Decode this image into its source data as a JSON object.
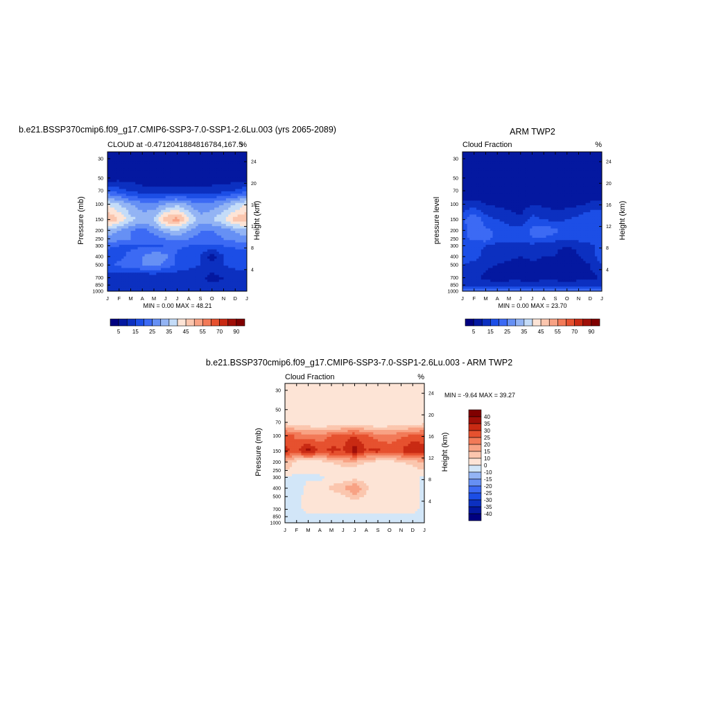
{
  "colors": {
    "plot_palette": [
      "#000080",
      "#0418a0",
      "#0c30c0",
      "#1c4ee6",
      "#3c6af4",
      "#6690f4",
      "#93b4f4",
      "#c4dcf8",
      "#fde4d6",
      "#fbc6ae",
      "#f8a284",
      "#f27a58",
      "#e6512f",
      "#c92a13",
      "#a00f08",
      "#800000"
    ],
    "diff_palette": [
      "#000080",
      "#0418a0",
      "#0c30c0",
      "#1c4ee6",
      "#3c6af4",
      "#6690f4",
      "#93b4f4",
      "#d2e6f8",
      "#fde4d6",
      "#fbc6ae",
      "#f8a284",
      "#f27a58",
      "#e6512f",
      "#c92a13",
      "#a00f08",
      "#800000"
    ]
  },
  "panels": [
    {
      "title": "b.e21.BSSP370cmip6.f09_g17.CMIP6-SSP3-7.0-SSP1-2.6Lu.003 (yrs 2065-2089)",
      "left_string": "CLOUD at -0.4712041884816784,167.5",
      "right_string": "%",
      "ylabel": "Pressure (mb)",
      "ylabel_right": "Height (km)",
      "minmax": "MIN =   0.00 MAX =  48.21"
    },
    {
      "title": "ARM TWP2",
      "left_string": "Cloud Fraction",
      "right_string": "%",
      "ylabel": "pressure level",
      "ylabel_right": "Height (km)",
      "minmax": "MIN =   0.00 MAX =  23.70"
    },
    {
      "title": "b.e21.BSSP370cmip6.f09_g17.CMIP6-SSP3-7.0-SSP1-2.6Lu.003 - ARM TWP2",
      "left_string": "Cloud Fraction",
      "right_string": "%",
      "ylabel": "Pressure (mb)",
      "ylabel_right": "Height (km)",
      "minmax": "MIN =  -9.64 MAX =  39.27"
    }
  ],
  "colorbar_labels": [
    "5",
    "15",
    "25",
    "35",
    "45",
    "55",
    "70",
    "90"
  ],
  "diff_colorbar_labels": [
    "40",
    "35",
    "30",
    "25",
    "20",
    "15",
    "10",
    "0",
    "-10",
    "-15",
    "-20",
    "-25",
    "-30",
    "-35",
    "-40"
  ],
  "chart_data": [
    {
      "type": "heatmap",
      "title": "b.e21.BSSP370cmip6.f09_g17.CMIP6-SSP3-7.0-SSP1-2.6Lu.003 (yrs 2065-2089)",
      "x": [
        "J",
        "F",
        "M",
        "A",
        "M",
        "J",
        "J",
        "A",
        "S",
        "O",
        "N",
        "D",
        "J"
      ],
      "y": [
        30,
        50,
        70,
        100,
        150,
        200,
        250,
        300,
        400,
        500,
        700,
        850,
        1000
      ],
      "y_right": [
        24,
        20,
        16,
        12,
        8,
        4
      ],
      "xlabel": "",
      "ylabel": "Pressure (mb)",
      "ylabel_right": "Height (km)",
      "ylim": [
        30,
        1000
      ],
      "y_scale": "log",
      "y_reversed": true,
      "levels": [
        0,
        5,
        10,
        15,
        20,
        25,
        30,
        35,
        40,
        45,
        50,
        55,
        60,
        70,
        80,
        90
      ],
      "min": 0.0,
      "max": 48.21,
      "values": [
        [
          0,
          0,
          0,
          0,
          0,
          0,
          0,
          0,
          0,
          0,
          0,
          0,
          0
        ],
        [
          2,
          3,
          3,
          2,
          2,
          2,
          2,
          2,
          2,
          2,
          2,
          2,
          2
        ],
        [
          15,
          12,
          9,
          7,
          6,
          6,
          6,
          6,
          6,
          7,
          8,
          10,
          14
        ],
        [
          35,
          30,
          25,
          22,
          22,
          25,
          28,
          24,
          20,
          22,
          25,
          30,
          35
        ],
        [
          45,
          40,
          32,
          28,
          30,
          44,
          48,
          36,
          28,
          30,
          35,
          42,
          45
        ],
        [
          28,
          25,
          20,
          18,
          22,
          28,
          30,
          25,
          20,
          20,
          22,
          26,
          28
        ],
        [
          24,
          22,
          20,
          18,
          18,
          20,
          22,
          20,
          18,
          18,
          20,
          22,
          24
        ],
        [
          16,
          15,
          14,
          14,
          14,
          15,
          16,
          15,
          14,
          14,
          15,
          16,
          16
        ],
        [
          12,
          14,
          16,
          20,
          24,
          22,
          14,
          12,
          10,
          2,
          10,
          12,
          12
        ],
        [
          14,
          16,
          18,
          20,
          22,
          18,
          14,
          12,
          10,
          8,
          10,
          12,
          14
        ],
        [
          6,
          6,
          5,
          5,
          5,
          5,
          6,
          6,
          6,
          3,
          5,
          6,
          6
        ],
        [
          8,
          6,
          5,
          5,
          6,
          6,
          7,
          7,
          7,
          6,
          6,
          7,
          8
        ],
        [
          8,
          7,
          6,
          6,
          7,
          7,
          8,
          8,
          8,
          7,
          7,
          8,
          8
        ]
      ]
    },
    {
      "type": "heatmap",
      "title": "ARM TWP2",
      "x": [
        "J",
        "F",
        "M",
        "A",
        "M",
        "J",
        "J",
        "A",
        "S",
        "O",
        "N",
        "D",
        "J"
      ],
      "y": [
        30,
        50,
        70,
        100,
        150,
        200,
        250,
        300,
        400,
        500,
        700,
        850,
        1000
      ],
      "y_right": [
        24,
        20,
        16,
        12,
        8,
        4
      ],
      "xlabel": "",
      "ylabel": "pressure level",
      "ylabel_right": "Height (km)",
      "ylim": [
        30,
        1000
      ],
      "y_scale": "log",
      "y_reversed": true,
      "levels": [
        0,
        5,
        10,
        15,
        20,
        25,
        30,
        35,
        40,
        45,
        50,
        55,
        60,
        70,
        80,
        90
      ],
      "min": 0.0,
      "max": 23.7,
      "values": [
        [
          0,
          0,
          0,
          0,
          0,
          0,
          0,
          0,
          0,
          0,
          0,
          0,
          0
        ],
        [
          0,
          0,
          0,
          0,
          0,
          0,
          0,
          0,
          0,
          0,
          0,
          0,
          0
        ],
        [
          1,
          1,
          1,
          1,
          1,
          1,
          1,
          1,
          1,
          1,
          1,
          1,
          1
        ],
        [
          6,
          7,
          5,
          4,
          3,
          2,
          5,
          4,
          3,
          3,
          4,
          6,
          7
        ],
        [
          14,
          20,
          12,
          10,
          8,
          6,
          12,
          10,
          8,
          10,
          12,
          15,
          14
        ],
        [
          12,
          18,
          16,
          14,
          12,
          12,
          16,
          20,
          16,
          14,
          12,
          15,
          12
        ],
        [
          14,
          16,
          18,
          12,
          12,
          12,
          15,
          14,
          12,
          12,
          12,
          14,
          14
        ],
        [
          12,
          12,
          10,
          8,
          8,
          8,
          8,
          7,
          6,
          5,
          6,
          8,
          12
        ],
        [
          14,
          12,
          8,
          6,
          6,
          5,
          6,
          5,
          5,
          2,
          5,
          6,
          14
        ],
        [
          10,
          8,
          6,
          5,
          4,
          3,
          4,
          4,
          3,
          2,
          4,
          5,
          10
        ],
        [
          5,
          6,
          4,
          1,
          3,
          3,
          1,
          4,
          3,
          2,
          3,
          4,
          5
        ],
        [
          8,
          8,
          8,
          8,
          8,
          8,
          8,
          8,
          8,
          8,
          8,
          8,
          8
        ],
        [
          18,
          18,
          18,
          18,
          18,
          18,
          18,
          18,
          18,
          18,
          18,
          18,
          18
        ]
      ]
    },
    {
      "type": "heatmap",
      "title": "b.e21.BSSP370cmip6.f09_g17.CMIP6-SSP3-7.0-SSP1-2.6Lu.003 - ARM TWP2",
      "x": [
        "J",
        "F",
        "M",
        "A",
        "M",
        "J",
        "J",
        "A",
        "S",
        "O",
        "N",
        "D",
        "J"
      ],
      "y": [
        30,
        50,
        70,
        100,
        150,
        200,
        250,
        300,
        400,
        500,
        700,
        850,
        1000
      ],
      "y_right": [
        24,
        20,
        16,
        12,
        8,
        4
      ],
      "xlabel": "",
      "ylabel": "Pressure (mb)",
      "ylabel_right": "Height (km)",
      "ylim": [
        30,
        1000
      ],
      "y_scale": "log",
      "y_reversed": true,
      "levels": [
        -40,
        -35,
        -30,
        -25,
        -20,
        -15,
        -10,
        0,
        10,
        15,
        20,
        25,
        30,
        35,
        40
      ],
      "min": -9.64,
      "max": 39.27,
      "values": [
        [
          0,
          0,
          0,
          0,
          0,
          0,
          0,
          0,
          0,
          0,
          0,
          0,
          0
        ],
        [
          3,
          3,
          3,
          3,
          3,
          3,
          3,
          3,
          3,
          3,
          3,
          3,
          3
        ],
        [
          8,
          6,
          5,
          4,
          4,
          4,
          4,
          4,
          4,
          5,
          5,
          6,
          8
        ],
        [
          28,
          24,
          22,
          22,
          25,
          28,
          30,
          26,
          22,
          22,
          24,
          26,
          28
        ],
        [
          32,
          28,
          38,
          28,
          32,
          30,
          38,
          30,
          32,
          28,
          30,
          36,
          32
        ],
        [
          16,
          8,
          6,
          8,
          10,
          14,
          14,
          10,
          8,
          8,
          10,
          12,
          16
        ],
        [
          10,
          6,
          4,
          8,
          6,
          6,
          6,
          6,
          6,
          6,
          6,
          8,
          10
        ],
        [
          -2,
          -4,
          -2,
          -4,
          4,
          6,
          8,
          6,
          6,
          4,
          3,
          2,
          -2
        ],
        [
          -3,
          -6,
          4,
          6,
          12,
          15,
          20,
          12,
          6,
          4,
          4,
          4,
          -3
        ],
        [
          -3,
          -2,
          3,
          4,
          6,
          8,
          14,
          8,
          4,
          4,
          4,
          4,
          -3
        ],
        [
          -2,
          -2,
          2,
          2,
          2,
          2,
          2,
          2,
          2,
          2,
          2,
          2,
          -2
        ],
        [
          -2,
          -2,
          -2,
          -2,
          -2,
          -2,
          -2,
          -2,
          -2,
          -2,
          -2,
          -2,
          -2
        ],
        [
          -1,
          -1,
          -1,
          -1,
          -1,
          -1,
          -1,
          -1,
          -1,
          -1,
          -1,
          -1,
          -1
        ]
      ]
    }
  ]
}
